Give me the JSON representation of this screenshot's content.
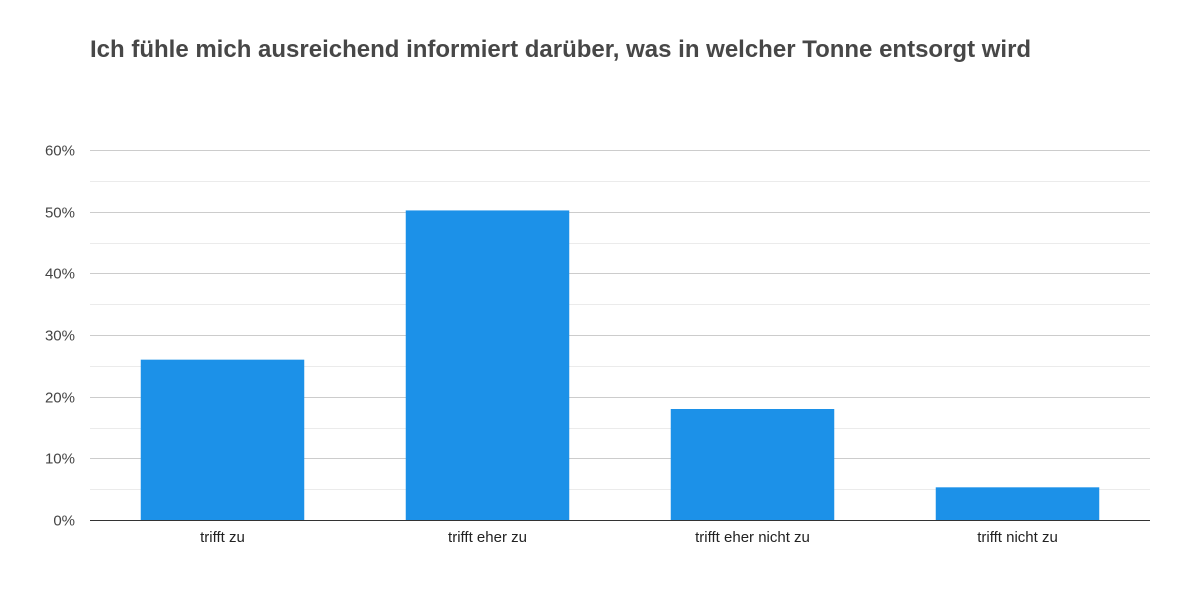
{
  "chart_data": {
    "type": "bar",
    "title": "Ich fühle mich ausreichend informiert darüber, was in welcher Tonne entsorgt wird",
    "xlabel": "",
    "ylabel": "",
    "categories": [
      "trifft zu",
      "trifft eher zu",
      "trifft eher nicht zu",
      "trifft nicht zu"
    ],
    "values": [
      26,
      50.2,
      18,
      5.3
    ],
    "ylim": [
      0,
      60
    ],
    "yticks": [
      0,
      10,
      20,
      30,
      40,
      50,
      60
    ],
    "ytick_labels": [
      "0%",
      "10%",
      "20%",
      "30%",
      "40%",
      "50%",
      "60%"
    ],
    "grid": true,
    "legend": "none",
    "bar_color": "#1c91e8"
  }
}
